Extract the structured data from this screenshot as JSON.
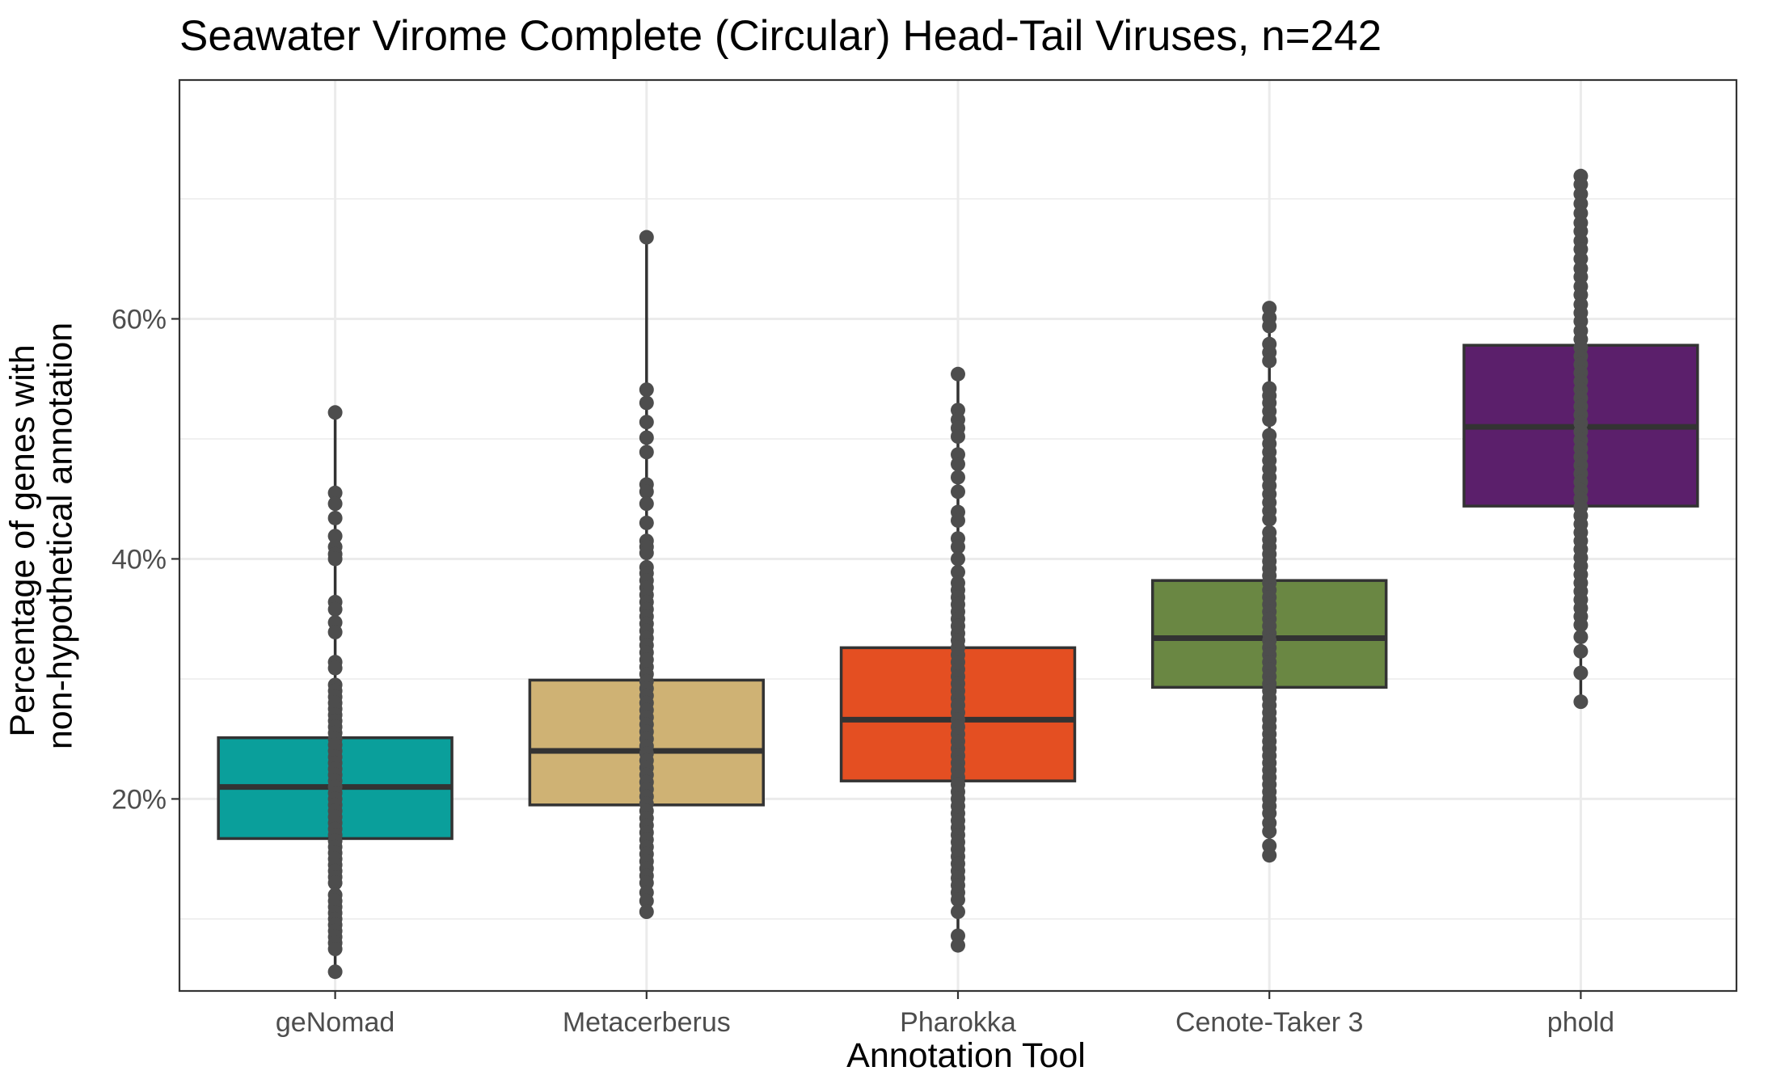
{
  "chart_data": {
    "type": "box",
    "title": "Seawater Virome Complete (Circular) Head-Tail Viruses, n=242",
    "xlabel": "Annotation Tool",
    "ylabel": [
      "Percentage of genes with",
      "non-hypothetical annotation"
    ],
    "ylim": [
      4,
      79.9
    ],
    "yticks": [
      20,
      40,
      60
    ],
    "ytick_labels": [
      "20%",
      "40%",
      "60%"
    ],
    "y_minor_ticks": [
      10,
      30,
      50,
      70
    ],
    "grid": true,
    "legend": "none",
    "categories": [
      "geNomad",
      "Metacerberus",
      "Pharokka",
      "Cenote-Taker 3",
      "phold"
    ],
    "boxes": [
      {
        "name": "geNomad",
        "color": "#0a9f9b",
        "q1": 16.7,
        "median": 21.0,
        "q3": 25.1,
        "points": [
          52.2,
          45.5,
          44.6,
          43.4,
          41.9,
          41.0,
          40.4,
          40.0,
          36.4,
          35.8,
          34.7,
          33.9,
          31.4,
          30.9,
          29.5,
          29.0,
          28.5,
          28.0,
          27.5,
          27.0,
          26.5,
          26.0,
          25.5,
          25.0,
          24.5,
          24.0,
          23.5,
          23.0,
          22.5,
          22.0,
          21.5,
          21.0,
          20.5,
          20.0,
          19.5,
          19.0,
          18.5,
          18.0,
          17.5,
          17.0,
          16.5,
          16.0,
          15.5,
          15.0,
          14.5,
          14.0,
          13.5,
          13.0,
          12.0,
          11.5,
          11.0,
          10.5,
          10.0,
          9.5,
          9.0,
          8.5,
          8.0,
          7.5,
          5.6
        ]
      },
      {
        "name": "Metacerberus",
        "color": "#cfb274",
        "q1": 19.5,
        "median": 24.0,
        "q3": 29.9,
        "points": [
          66.8,
          54.1,
          53.0,
          51.4,
          50.1,
          48.9,
          46.2,
          45.6,
          44.6,
          43.0,
          41.5,
          41.0,
          40.5,
          39.3,
          38.8,
          38.2,
          37.6,
          37.0,
          36.4,
          35.8,
          35.2,
          34.6,
          34.0,
          33.4,
          32.8,
          32.2,
          31.6,
          31.0,
          30.4,
          29.8,
          29.2,
          28.6,
          28.0,
          27.4,
          26.8,
          26.2,
          25.6,
          25.0,
          24.4,
          23.8,
          23.2,
          22.6,
          22.0,
          21.4,
          20.8,
          20.2,
          19.6,
          19.0,
          18.4,
          17.8,
          17.2,
          16.6,
          16.0,
          15.4,
          14.8,
          14.2,
          13.6,
          13.0,
          12.2,
          11.5,
          10.6
        ]
      },
      {
        "name": "Pharokka",
        "color": "#e44f22",
        "q1": 21.5,
        "median": 26.6,
        "q3": 32.6,
        "points": [
          55.4,
          52.4,
          51.6,
          50.9,
          50.2,
          48.7,
          47.9,
          46.8,
          45.6,
          43.9,
          43.2,
          41.7,
          41.0,
          40.0,
          38.9,
          38.0,
          37.4,
          36.8,
          36.2,
          35.6,
          35.0,
          34.4,
          33.8,
          33.2,
          32.6,
          32.0,
          31.4,
          30.8,
          30.2,
          29.6,
          29.0,
          28.4,
          27.8,
          27.2,
          26.6,
          26.0,
          25.4,
          24.8,
          24.2,
          23.6,
          23.0,
          22.4,
          21.8,
          21.2,
          20.6,
          20.0,
          19.4,
          18.8,
          18.2,
          17.6,
          17.0,
          16.4,
          15.8,
          15.2,
          14.6,
          14.0,
          13.4,
          12.8,
          12.2,
          11.6,
          10.6,
          8.6,
          7.8
        ]
      },
      {
        "name": "Cenote-Taker 3",
        "color": "#6a8743",
        "q1": 29.3,
        "median": 33.4,
        "q3": 38.2,
        "points": [
          60.9,
          60.1,
          59.4,
          57.9,
          57.2,
          56.5,
          54.2,
          53.6,
          53.0,
          52.3,
          51.6,
          50.3,
          49.6,
          48.9,
          48.2,
          47.5,
          46.8,
          46.1,
          45.4,
          44.7,
          44.0,
          43.3,
          42.2,
          41.6,
          41.0,
          40.4,
          39.8,
          39.2,
          38.6,
          38.0,
          37.4,
          36.8,
          36.2,
          35.6,
          35.0,
          34.4,
          33.8,
          33.2,
          32.6,
          32.0,
          31.4,
          30.8,
          30.2,
          29.6,
          29.0,
          28.4,
          27.8,
          27.2,
          26.6,
          26.0,
          25.4,
          24.8,
          24.2,
          23.6,
          23.0,
          22.4,
          21.8,
          21.2,
          20.6,
          20.0,
          19.4,
          18.8,
          18.0,
          17.3,
          16.1,
          15.3
        ]
      },
      {
        "name": "phold",
        "color": "#5b1f6b",
        "q1": 44.4,
        "median": 51.0,
        "q3": 57.8,
        "points": [
          71.9,
          71.2,
          70.4,
          69.6,
          68.8,
          68.0,
          67.3,
          66.5,
          65.8,
          65.0,
          64.2,
          63.5,
          62.7,
          62.0,
          61.2,
          60.5,
          59.8,
          59.0,
          58.3,
          57.6,
          56.9,
          56.2,
          55.5,
          54.8,
          54.1,
          53.4,
          52.7,
          52.0,
          51.3,
          50.6,
          49.9,
          49.2,
          48.5,
          47.8,
          47.1,
          46.4,
          45.7,
          45.0,
          44.3,
          43.6,
          42.9,
          42.2,
          41.5,
          40.8,
          40.1,
          39.4,
          38.7,
          38.0,
          37.3,
          36.6,
          35.9,
          35.2,
          34.5,
          33.5,
          32.3,
          30.5,
          28.1
        ]
      }
    ]
  }
}
